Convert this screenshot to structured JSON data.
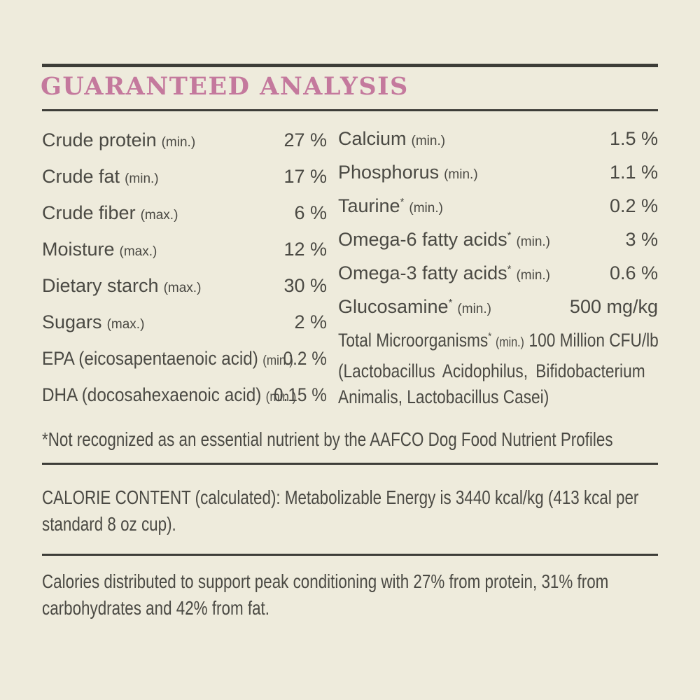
{
  "meta": {
    "background_color": "#eeebdc",
    "text_color": "#4a4943",
    "accent_color": "#c4799d",
    "rule_color": "#3d3d38"
  },
  "header": {
    "title": "GUARANTEED ANALYSIS"
  },
  "analysis": {
    "left_column": [
      {
        "label": "Crude protein",
        "qualifier": "(min.)",
        "value": "27 %"
      },
      {
        "label": "Crude fat",
        "qualifier": "(min.)",
        "value": "17 %"
      },
      {
        "label": "Crude fiber",
        "qualifier": "(max.)",
        "value": "6 %"
      },
      {
        "label": "Moisture",
        "qualifier": "(max.)",
        "value": "12 %"
      },
      {
        "label": "Dietary starch",
        "qualifier": "(max.)",
        "value": "30 %"
      },
      {
        "label": "Sugars",
        "qualifier": "(max.)",
        "value": "2 %"
      },
      {
        "label": "EPA (eicosapentaenoic acid)",
        "qualifier": "(min.)",
        "value": "0.2 %"
      },
      {
        "label": "DHA (docosahexaenoic acid)",
        "qualifier": "(min.)",
        "value": "0.15 %"
      }
    ],
    "right_column": [
      {
        "label": "Calcium",
        "qualifier": "(min.)",
        "value": "1.5 %"
      },
      {
        "label": "Phosphorus",
        "qualifier": "(min.)",
        "value": "1.1 %"
      },
      {
        "label": "Taurine",
        "asterisk": "*",
        "qualifier": "(min.)",
        "value": "0.2 %"
      },
      {
        "label": "Omega-6 fatty acids",
        "asterisk": "*",
        "qualifier": "(min.)",
        "value": "3 %"
      },
      {
        "label": "Omega-3 fatty acids",
        "asterisk": "*",
        "qualifier": "(min.)",
        "value": "0.6 %"
      },
      {
        "label": "Glucosamine",
        "asterisk": "*",
        "qualifier": "(min.)",
        "value": "500 mg/kg"
      }
    ],
    "microorganisms": {
      "label": "Total Microorganisms",
      "asterisk": "*",
      "qualifier": "(min.)",
      "value": "100 Million CFU/lb",
      "detail_line1": "(Lactobacillus Acidophilus, Bifidobacterium",
      "detail_line2": "Animalis, Lactobacillus Casei)"
    }
  },
  "footnote": "*Not recognized as an essential nutrient by the AAFCO Dog Food Nutrient Profiles",
  "calorie_content": {
    "line1": "CALORIE CONTENT (calculated): Metabolizable Energy is 3440 kcal/kg (413 kcal per",
    "line2": "standard 8 oz cup)."
  },
  "calorie_distribution": {
    "line1": "Calories distributed to support peak conditioning with 27% from protein, 31% from",
    "line2": "carbohydrates and 42% from fat."
  }
}
